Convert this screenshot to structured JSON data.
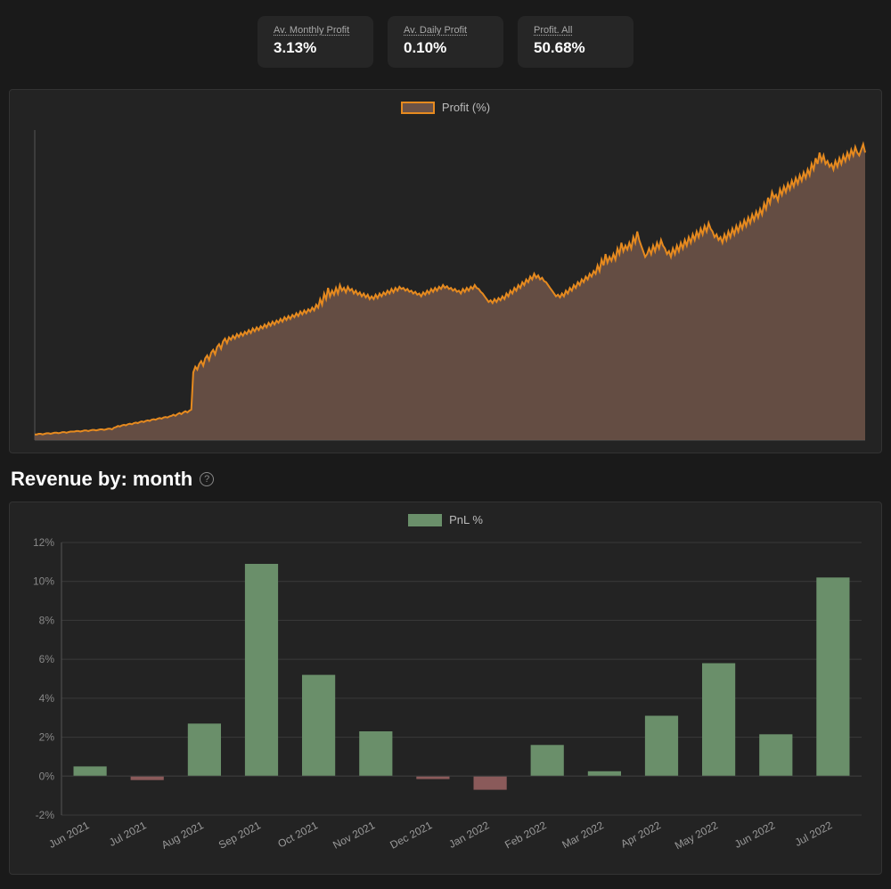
{
  "stats": [
    {
      "label": "Av. Monthly Profit",
      "value": "3.13%"
    },
    {
      "label": "Av. Daily Profit",
      "value": "0.10%"
    },
    {
      "label": "Profit. All",
      "value": "50.68%"
    }
  ],
  "profit_chart": {
    "type": "area",
    "legend_label": "Profit (%)",
    "stroke_color": "#e68a1f",
    "fill_color": "#6b5247",
    "panel_bg": "#232323",
    "grid_color": "#3a3a3a",
    "axis_color": "#555555",
    "line_width": 2,
    "ylim": [
      0,
      55
    ],
    "x_count": 420,
    "values": [
      1.0,
      1.0,
      1.1,
      1.1,
      1.0,
      1.1,
      1.2,
      1.2,
      1.1,
      1.2,
      1.3,
      1.3,
      1.2,
      1.3,
      1.4,
      1.4,
      1.3,
      1.4,
      1.5,
      1.5,
      1.5,
      1.6,
      1.6,
      1.5,
      1.6,
      1.7,
      1.7,
      1.6,
      1.7,
      1.8,
      1.8,
      1.7,
      1.8,
      1.9,
      1.9,
      1.8,
      1.9,
      2.0,
      2.0,
      1.9,
      2.2,
      2.3,
      2.5,
      2.4,
      2.6,
      2.7,
      2.6,
      2.8,
      2.9,
      2.8,
      3.0,
      3.1,
      3.0,
      3.2,
      3.3,
      3.2,
      3.4,
      3.5,
      3.4,
      3.6,
      3.7,
      3.6,
      3.8,
      3.9,
      3.8,
      4.0,
      4.1,
      4.0,
      4.2,
      4.3,
      4.5,
      4.3,
      4.6,
      4.8,
      4.6,
      4.9,
      5.1,
      4.9,
      5.2,
      5.4,
      12.0,
      13.0,
      12.5,
      13.5,
      14.0,
      13.2,
      14.5,
      15.0,
      14.2,
      15.5,
      16.0,
      15.2,
      16.5,
      17.0,
      16.2,
      17.5,
      18.0,
      17.2,
      18.2,
      17.8,
      18.5,
      18.0,
      18.8,
      18.3,
      19.0,
      18.5,
      19.2,
      18.8,
      19.5,
      19.0,
      19.8,
      19.3,
      20.0,
      19.5,
      20.2,
      19.8,
      20.5,
      20.0,
      20.8,
      20.3,
      21.0,
      20.5,
      21.2,
      20.8,
      21.5,
      21.0,
      21.8,
      21.3,
      22.0,
      21.5,
      22.2,
      21.8,
      22.5,
      22.0,
      22.8,
      22.3,
      23.0,
      22.5,
      23.2,
      22.8,
      23.5,
      23.0,
      24.0,
      23.5,
      25.0,
      24.0,
      26.0,
      25.0,
      27.0,
      25.5,
      26.5,
      25.8,
      27.0,
      26.0,
      27.5,
      26.5,
      27.0,
      26.2,
      27.2,
      26.5,
      26.8,
      26.0,
      26.5,
      25.8,
      26.2,
      25.5,
      26.0,
      25.3,
      25.8,
      25.0,
      25.5,
      25.0,
      25.8,
      25.2,
      26.0,
      25.5,
      26.2,
      25.8,
      26.5,
      26.0,
      26.8,
      26.2,
      27.0,
      26.5,
      27.2,
      26.8,
      27.0,
      26.5,
      26.8,
      26.3,
      26.5,
      26.0,
      26.3,
      25.8,
      26.0,
      25.5,
      26.2,
      25.8,
      26.5,
      26.0,
      26.8,
      26.3,
      27.0,
      26.5,
      27.2,
      26.8,
      27.5,
      27.0,
      27.3,
      26.8,
      27.0,
      26.5,
      26.8,
      26.3,
      26.5,
      26.0,
      26.8,
      26.3,
      27.0,
      26.5,
      27.2,
      26.8,
      27.5,
      27.0,
      26.8,
      26.3,
      26.0,
      25.5,
      25.0,
      24.5,
      24.8,
      24.3,
      25.0,
      24.5,
      25.2,
      24.8,
      25.5,
      25.0,
      26.0,
      25.5,
      26.5,
      26.0,
      27.0,
      26.5,
      27.5,
      27.0,
      28.0,
      27.5,
      28.5,
      28.0,
      29.0,
      28.5,
      29.5,
      28.8,
      29.2,
      28.5,
      28.8,
      28.2,
      28.0,
      27.5,
      27.0,
      26.5,
      26.0,
      25.5,
      25.8,
      25.3,
      26.0,
      25.5,
      26.5,
      26.0,
      27.0,
      26.5,
      27.5,
      27.0,
      28.0,
      27.5,
      28.5,
      28.0,
      29.0,
      28.5,
      29.5,
      29.0,
      30.0,
      29.5,
      31.0,
      30.0,
      32.0,
      31.0,
      33.0,
      31.5,
      32.5,
      31.8,
      33.0,
      32.0,
      34.0,
      33.0,
      35.0,
      33.5,
      34.5,
      33.8,
      35.0,
      34.0,
      36.0,
      35.0,
      37.0,
      35.5,
      34.5,
      33.5,
      32.5,
      33.0,
      34.0,
      33.0,
      34.5,
      33.5,
      35.0,
      34.0,
      35.5,
      34.5,
      34.0,
      33.0,
      33.5,
      32.5,
      34.0,
      33.0,
      34.5,
      33.5,
      35.0,
      34.0,
      35.5,
      34.5,
      36.0,
      35.0,
      36.5,
      35.5,
      37.0,
      36.0,
      37.5,
      36.5,
      38.0,
      37.0,
      38.5,
      37.5,
      37.0,
      36.0,
      36.5,
      35.5,
      36.0,
      35.0,
      36.5,
      35.5,
      37.0,
      36.0,
      37.5,
      36.5,
      38.0,
      37.0,
      38.5,
      37.5,
      39.0,
      38.0,
      39.5,
      38.5,
      40.0,
      39.0,
      40.5,
      39.5,
      41.0,
      40.0,
      42.0,
      41.0,
      43.0,
      42.0,
      44.0,
      43.0,
      43.5,
      42.5,
      44.5,
      43.5,
      45.0,
      44.0,
      45.5,
      44.5,
      46.0,
      45.0,
      46.5,
      45.5,
      47.0,
      46.0,
      47.5,
      46.5,
      48.0,
      47.0,
      49.0,
      48.0,
      50.0,
      49.0,
      51.0,
      49.5,
      50.5,
      49.0,
      49.5,
      48.5,
      49.0,
      48.0,
      49.5,
      48.5,
      50.0,
      49.0,
      50.5,
      49.5,
      51.0,
      50.0,
      51.5,
      50.5,
      52.0,
      51.0,
      50.5,
      51.5,
      52.5,
      51.0
    ]
  },
  "section_title": "Revenue by: month",
  "bar_chart": {
    "type": "bar",
    "legend_label": "PnL %",
    "panel_bg": "#232323",
    "grid_color": "#3a3a3a",
    "axis_color": "#555555",
    "pos_color": "#6a8f6a",
    "neg_color": "#8a5a5a",
    "label_color": "#999999",
    "tick_fontsize": 12,
    "bar_width": 0.58,
    "ylim": [
      -2,
      12
    ],
    "ytick_step": 2,
    "ytick_suffix": "%",
    "categories": [
      "Jun 2021",
      "Jul 2021",
      "Aug 2021",
      "Sep 2021",
      "Oct 2021",
      "Nov 2021",
      "Dec 2021",
      "Jan 2022",
      "Feb 2022",
      "Mar 2022",
      "Apr 2022",
      "May 2022",
      "Jun 2022",
      "Jul 2022"
    ],
    "values": [
      0.5,
      -0.2,
      2.7,
      10.9,
      5.2,
      2.3,
      -0.15,
      -0.7,
      1.6,
      0.25,
      3.1,
      5.8,
      2.15,
      10.2
    ]
  }
}
